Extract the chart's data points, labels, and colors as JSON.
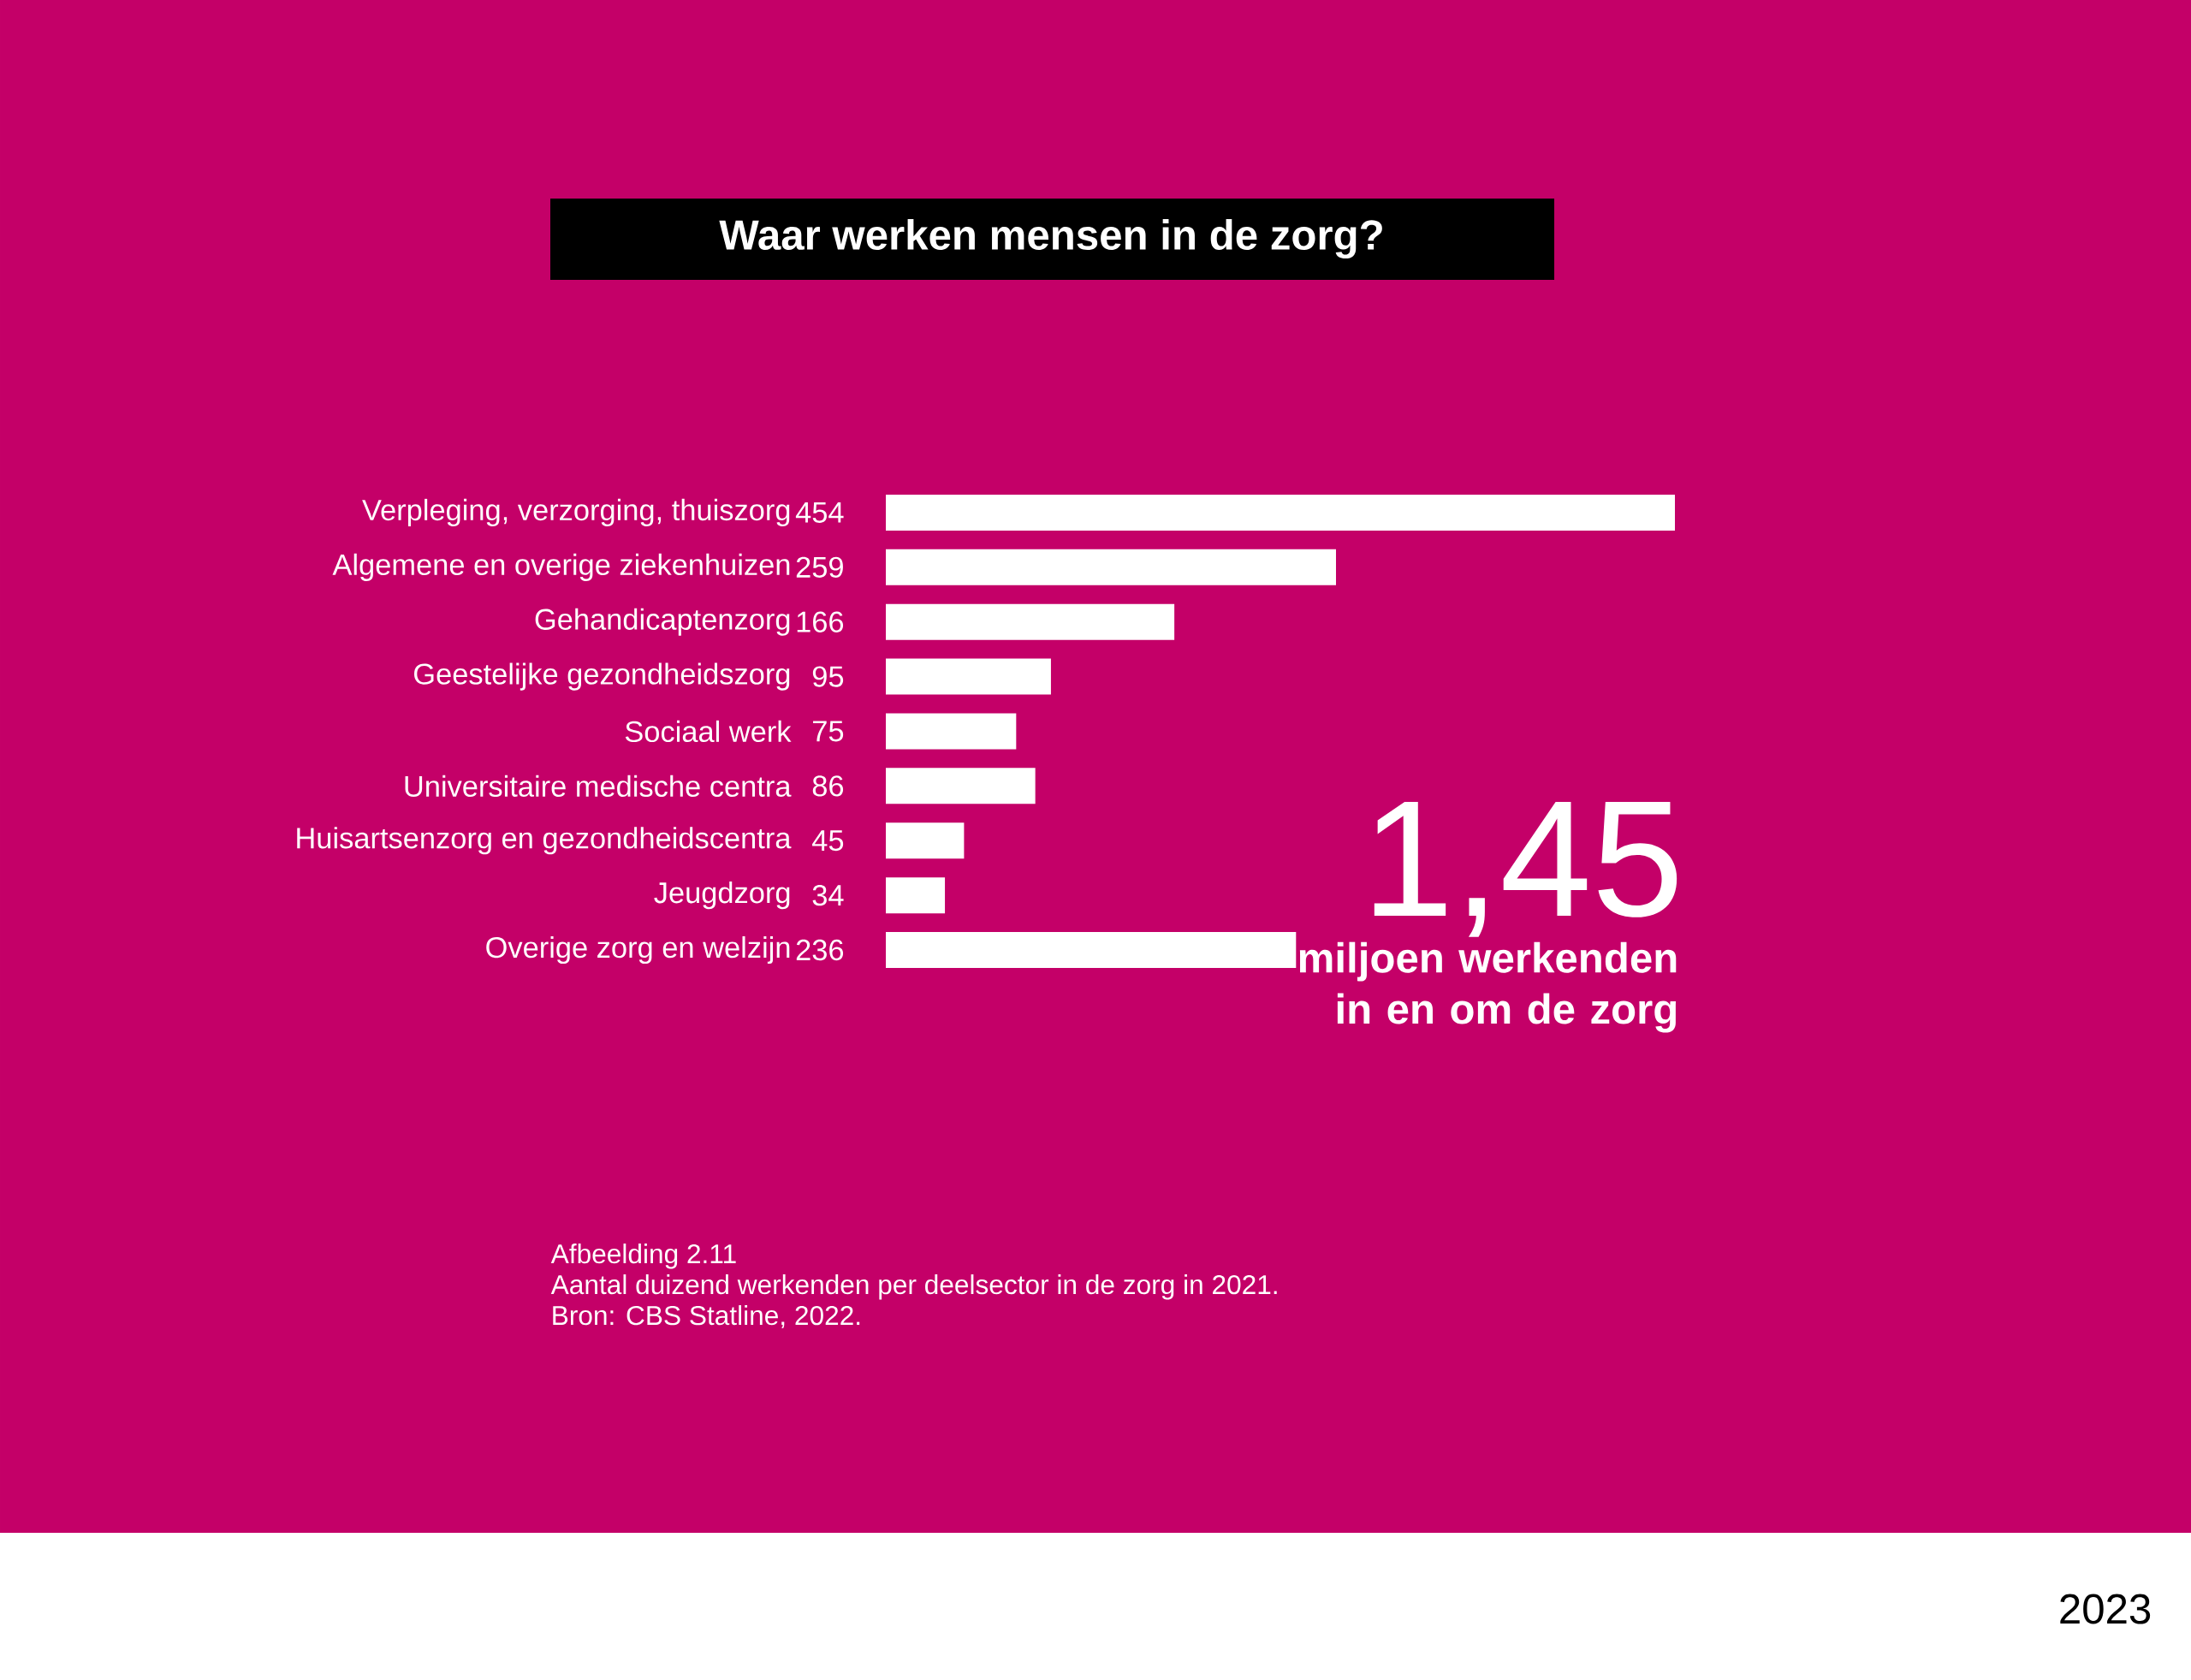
{
  "chart_data": {
    "type": "bar",
    "orientation": "horizontal",
    "title": "Waar werken mensen in de zorg?",
    "categories": [
      "Verpleging, verzorging, thuiszorg",
      "Algemene en overige ziekenhuizen",
      "Gehandicaptenzorg",
      "Geestelijke gezondheidszorg",
      "Sociaal werk",
      "Universitaire medische centra",
      "Huisartsenzorg en gezondheidscentra",
      "Jeugdzorg",
      "Overige zorg en welzijn"
    ],
    "values": [
      454,
      259,
      166,
      95,
      75,
      86,
      45,
      34,
      236
    ],
    "color": "#ffffff",
    "data_labels": true,
    "annotations": [
      "1,45",
      "miljoen werkenden in en om de zorg",
      "Afbeelding 2.11",
      "Aantal duizend werkenden per deelsector in de zorg in 2021.",
      "Bron: CBS Statline, 2022.",
      "2023"
    ]
  }
}
